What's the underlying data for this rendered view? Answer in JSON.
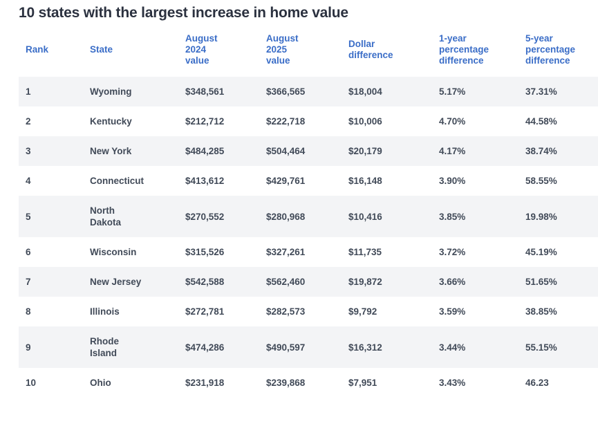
{
  "page": {
    "title": "10 states with the largest increase in home value"
  },
  "colors": {
    "title_text": "#2b313f",
    "header_text": "#3a6dc7",
    "body_text": "#414a58",
    "row_stripe": "#f3f4f6",
    "background": "#ffffff"
  },
  "table": {
    "columns": [
      {
        "label": "Rank"
      },
      {
        "label": "State"
      },
      {
        "label": "August\n2024\nvalue"
      },
      {
        "label": "August\n2025\nvalue"
      },
      {
        "label": "Dollar\ndifference"
      },
      {
        "label": "1-year\npercentage\ndifference"
      },
      {
        "label": "5-year\npercentage\ndifference"
      }
    ],
    "rows": [
      {
        "rank": "1",
        "state": "Wyoming",
        "aug2024": "$348,561",
        "aug2025": "$366,565",
        "dollar_diff": "$18,004",
        "one_year_pct": "5.17%",
        "five_year_pct": "37.31%"
      },
      {
        "rank": "2",
        "state": "Kentucky",
        "aug2024": "$212,712",
        "aug2025": "$222,718",
        "dollar_diff": "$10,006",
        "one_year_pct": "4.70%",
        "five_year_pct": "44.58%"
      },
      {
        "rank": "3",
        "state": "New York",
        "aug2024": "$484,285",
        "aug2025": "$504,464",
        "dollar_diff": "$20,179",
        "one_year_pct": "4.17%",
        "five_year_pct": "38.74%"
      },
      {
        "rank": "4",
        "state": "Connecticut",
        "aug2024": "$413,612",
        "aug2025": "$429,761",
        "dollar_diff": "$16,148",
        "one_year_pct": "3.90%",
        "five_year_pct": "58.55%"
      },
      {
        "rank": "5",
        "state": "North\nDakota",
        "aug2024": "$270,552",
        "aug2025": "$280,968",
        "dollar_diff": "$10,416",
        "one_year_pct": "3.85%",
        "five_year_pct": "19.98%"
      },
      {
        "rank": "6",
        "state": "Wisconsin",
        "aug2024": "$315,526",
        "aug2025": "$327,261",
        "dollar_diff": "$11,735",
        "one_year_pct": "3.72%",
        "five_year_pct": "45.19%"
      },
      {
        "rank": "7",
        "state": "New Jersey",
        "aug2024": "$542,588",
        "aug2025": "$562,460",
        "dollar_diff": "$19,872",
        "one_year_pct": "3.66%",
        "five_year_pct": "51.65%"
      },
      {
        "rank": "8",
        "state": "Illinois",
        "aug2024": "$272,781",
        "aug2025": "$282,573",
        "dollar_diff": "$9,792",
        "one_year_pct": "3.59%",
        "five_year_pct": "38.85%"
      },
      {
        "rank": "9",
        "state": "Rhode\nIsland",
        "aug2024": "$474,286",
        "aug2025": "$490,597",
        "dollar_diff": "$16,312",
        "one_year_pct": "3.44%",
        "five_year_pct": "55.15%"
      },
      {
        "rank": "10",
        "state": "Ohio",
        "aug2024": "$231,918",
        "aug2025": "$239,868",
        "dollar_diff": "$7,951",
        "one_year_pct": "3.43%",
        "five_year_pct": "46.23"
      }
    ]
  },
  "chart_data": {
    "type": "table",
    "title": "10 states with the largest increase in home value",
    "columns": [
      "Rank",
      "State",
      "August 2024 value",
      "August 2025 value",
      "Dollar difference",
      "1-year percentage difference",
      "5-year percentage difference"
    ],
    "rows": [
      [
        1,
        "Wyoming",
        348561,
        366565,
        18004,
        "5.17%",
        "37.31%"
      ],
      [
        2,
        "Kentucky",
        212712,
        222718,
        10006,
        "4.70%",
        "44.58%"
      ],
      [
        3,
        "New York",
        484285,
        504464,
        20179,
        "4.17%",
        "38.74%"
      ],
      [
        4,
        "Connecticut",
        413612,
        429761,
        16148,
        "3.90%",
        "58.55%"
      ],
      [
        5,
        "North Dakota",
        270552,
        280968,
        10416,
        "3.85%",
        "19.98%"
      ],
      [
        6,
        "Wisconsin",
        315526,
        327261,
        11735,
        "3.72%",
        "45.19%"
      ],
      [
        7,
        "New Jersey",
        542588,
        562460,
        19872,
        "3.66%",
        "51.65%"
      ],
      [
        8,
        "Illinois",
        272781,
        282573,
        9792,
        "3.59%",
        "38.85%"
      ],
      [
        9,
        "Rhode Island",
        474286,
        490597,
        16312,
        "3.44%",
        "55.15%"
      ],
      [
        10,
        "Ohio",
        231918,
        239868,
        7951,
        "3.43%",
        "46.23"
      ]
    ]
  }
}
